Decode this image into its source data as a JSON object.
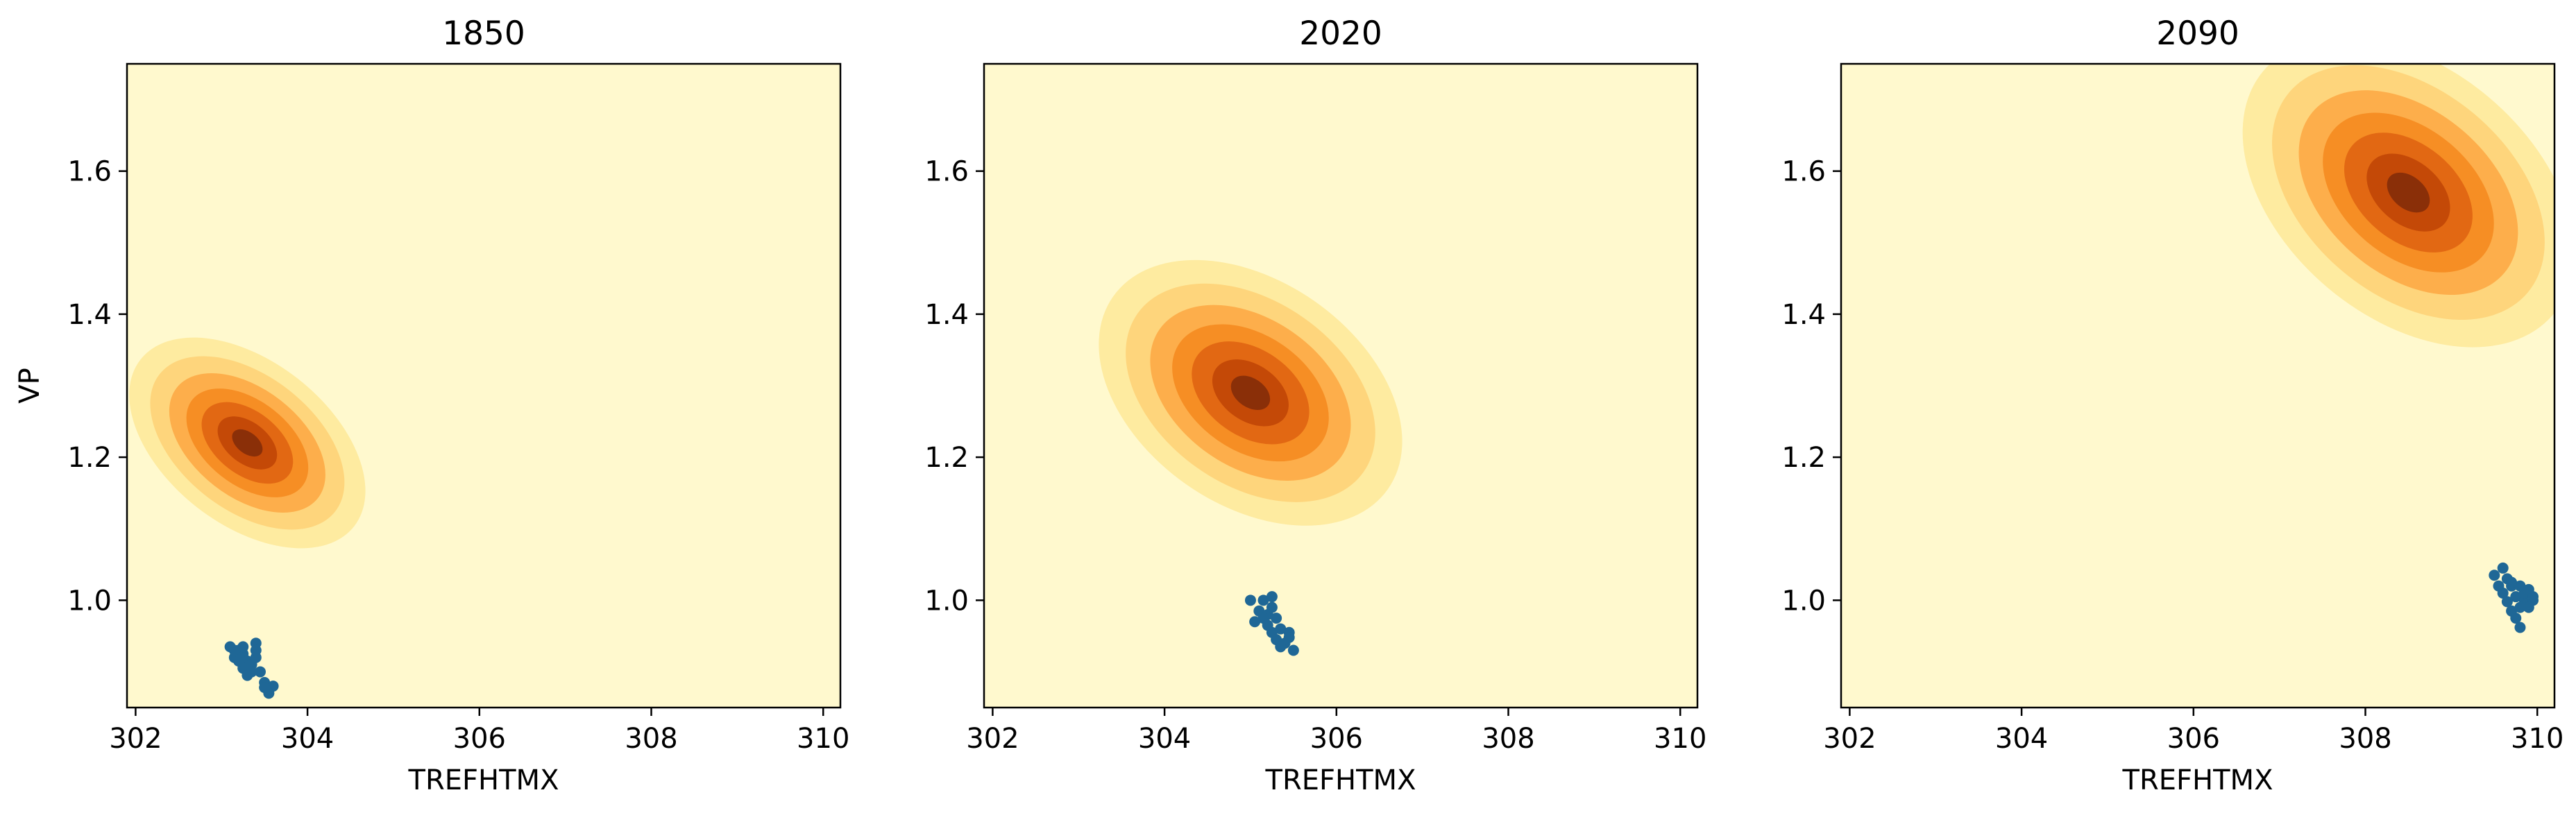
{
  "chart_data": [
    {
      "type": "contour",
      "title": "1850",
      "xlabel": "TREFHTMX",
      "ylabel": "VP",
      "xlim": [
        301.9,
        310.2
      ],
      "ylim": [
        0.85,
        1.75
      ],
      "xticks": [
        302,
        304,
        306,
        308,
        310
      ],
      "yticks": [
        1.0,
        1.2,
        1.4,
        1.6
      ],
      "grid": false,
      "background_color": "#fff9ce",
      "density_levels": [
        "#feeba0",
        "#fed57c",
        "#fdae4b",
        "#f68e24",
        "#e26813",
        "#c44907",
        "#8a2f08"
      ],
      "density_peak": {
        "x": 303.3,
        "y": 1.22
      },
      "scatter_color": "#1f6796",
      "points": [
        {
          "x": 303.1,
          "y": 0.935
        },
        {
          "x": 303.2,
          "y": 0.93
        },
        {
          "x": 303.25,
          "y": 0.925
        },
        {
          "x": 303.15,
          "y": 0.92
        },
        {
          "x": 303.3,
          "y": 0.915
        },
        {
          "x": 303.4,
          "y": 0.94
        },
        {
          "x": 303.35,
          "y": 0.91
        },
        {
          "x": 303.25,
          "y": 0.905
        },
        {
          "x": 303.4,
          "y": 0.92
        },
        {
          "x": 303.3,
          "y": 0.895
        },
        {
          "x": 303.45,
          "y": 0.9
        },
        {
          "x": 303.5,
          "y": 0.885
        },
        {
          "x": 303.6,
          "y": 0.88
        },
        {
          "x": 303.55,
          "y": 0.87
        },
        {
          "x": 303.4,
          "y": 0.93
        },
        {
          "x": 303.2,
          "y": 0.915
        },
        {
          "x": 303.15,
          "y": 0.93
        },
        {
          "x": 303.35,
          "y": 0.9
        },
        {
          "x": 303.25,
          "y": 0.935
        },
        {
          "x": 303.5,
          "y": 0.878
        }
      ]
    },
    {
      "type": "contour",
      "title": "2020",
      "xlabel": "TREFHTMX",
      "ylabel": "",
      "xlim": [
        301.9,
        310.2
      ],
      "ylim": [
        0.85,
        1.75
      ],
      "xticks": [
        302,
        304,
        306,
        308,
        310
      ],
      "yticks": [
        1.0,
        1.2,
        1.4,
        1.6
      ],
      "grid": false,
      "background_color": "#fff9ce",
      "density_levels": [
        "#feeba0",
        "#fed57c",
        "#fdae4b",
        "#f68e24",
        "#e26813",
        "#c44907",
        "#8a2f08"
      ],
      "density_peak": {
        "x": 305.0,
        "y": 1.29
      },
      "scatter_color": "#1f6796",
      "points": [
        {
          "x": 305.0,
          "y": 1.0
        },
        {
          "x": 305.15,
          "y": 1.0
        },
        {
          "x": 305.25,
          "y": 1.005
        },
        {
          "x": 305.1,
          "y": 0.985
        },
        {
          "x": 305.2,
          "y": 0.98
        },
        {
          "x": 305.3,
          "y": 0.975
        },
        {
          "x": 305.05,
          "y": 0.97
        },
        {
          "x": 305.2,
          "y": 0.965
        },
        {
          "x": 305.35,
          "y": 0.96
        },
        {
          "x": 305.25,
          "y": 0.955
        },
        {
          "x": 305.45,
          "y": 0.955
        },
        {
          "x": 305.3,
          "y": 0.945
        },
        {
          "x": 305.4,
          "y": 0.94
        },
        {
          "x": 305.5,
          "y": 0.93
        },
        {
          "x": 305.35,
          "y": 0.935
        },
        {
          "x": 305.15,
          "y": 0.975
        },
        {
          "x": 305.45,
          "y": 0.948
        },
        {
          "x": 305.25,
          "y": 0.99
        }
      ]
    },
    {
      "type": "contour",
      "title": "2090",
      "xlabel": "TREFHTMX",
      "ylabel": "",
      "xlim": [
        301.9,
        310.2
      ],
      "ylim": [
        0.85,
        1.75
      ],
      "xticks": [
        302,
        304,
        306,
        308,
        310
      ],
      "yticks": [
        1.0,
        1.2,
        1.4,
        1.6
      ],
      "grid": false,
      "background_color": "#fff9ce",
      "density_levels": [
        "#feeba0",
        "#fed57c",
        "#fdae4b",
        "#f68e24",
        "#e26813",
        "#c44907",
        "#8a2f08"
      ],
      "density_peak": {
        "x": 308.5,
        "y": 1.57
      },
      "scatter_color": "#1f6796",
      "points": [
        {
          "x": 309.5,
          "y": 1.035
        },
        {
          "x": 309.6,
          "y": 1.045
        },
        {
          "x": 309.65,
          "y": 1.03
        },
        {
          "x": 309.7,
          "y": 1.02
        },
        {
          "x": 309.8,
          "y": 1.02
        },
        {
          "x": 309.9,
          "y": 1.015
        },
        {
          "x": 309.6,
          "y": 1.01
        },
        {
          "x": 309.75,
          "y": 1.005
        },
        {
          "x": 309.85,
          "y": 1.0
        },
        {
          "x": 309.95,
          "y": 1.0
        },
        {
          "x": 309.65,
          "y": 0.998
        },
        {
          "x": 309.8,
          "y": 0.99
        },
        {
          "x": 309.7,
          "y": 0.985
        },
        {
          "x": 309.9,
          "y": 0.99
        },
        {
          "x": 309.75,
          "y": 0.975
        },
        {
          "x": 309.8,
          "y": 0.962
        },
        {
          "x": 309.55,
          "y": 1.02
        },
        {
          "x": 309.85,
          "y": 1.01
        },
        {
          "x": 309.7,
          "y": 1.025
        },
        {
          "x": 309.95,
          "y": 1.005
        }
      ]
    }
  ]
}
